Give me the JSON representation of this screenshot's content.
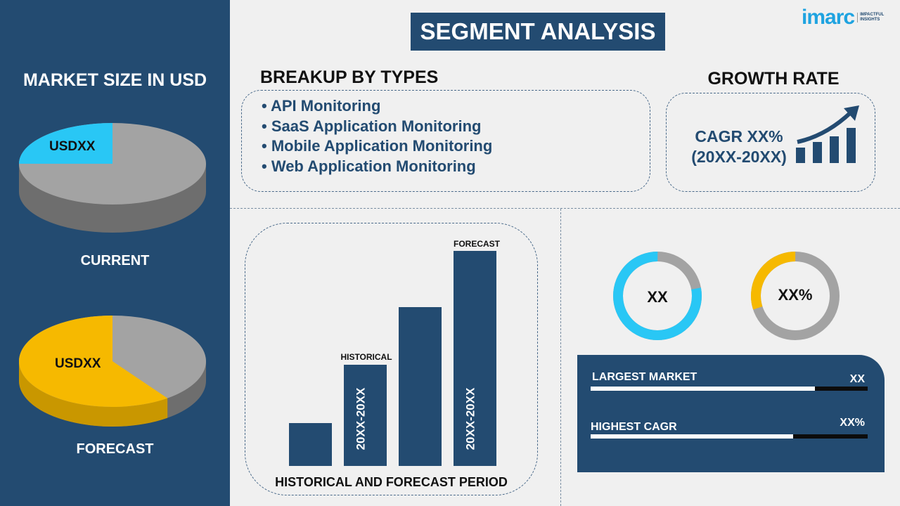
{
  "title": "SEGMENT ANALYSIS",
  "brand": {
    "logo_text": "imarc",
    "tagline": "IMPACTFUL INSIGHTS"
  },
  "left": {
    "heading": "MARKET SIZE IN USD",
    "current": {
      "value": "USDXX",
      "label": "CURRENT",
      "share": 0.25,
      "color": "#29c7f5"
    },
    "forecast": {
      "value": "USDXX",
      "label": "FORECAST",
      "share": 0.6,
      "color": "#f6b900"
    }
  },
  "breakup": {
    "heading": "BREAKUP BY TYPES",
    "items": [
      "API Monitoring",
      "SaaS Application Monitoring",
      "Mobile Application Monitoring",
      "Web Application Monitoring"
    ]
  },
  "growth": {
    "heading": "GROWTH RATE",
    "cagr": "CAGR XX%",
    "period": "(20XX-20XX)"
  },
  "chart_data": {
    "type": "bar",
    "title": "HISTORICAL AND FORECAST PERIOD",
    "relative_heights": [
      0.2,
      0.47,
      0.74,
      1.0
    ],
    "annotations": {
      "historical": "HISTORICAL",
      "forecast": "FORECAST",
      "historical_period": "20XX-20XX",
      "forecast_period": "20XX-20XX"
    },
    "color": "#234b71"
  },
  "donuts": [
    {
      "label": "XX",
      "share": 0.78,
      "color": "#29c7f5"
    },
    {
      "label": "XX%",
      "share": 0.3,
      "color": "#f6b900"
    }
  ],
  "stats": [
    {
      "label": "LARGEST MARKET",
      "value": "XX",
      "level": 0.81
    },
    {
      "label": "HIGHEST CAGR",
      "value": "XX%",
      "level": 0.73
    }
  ]
}
